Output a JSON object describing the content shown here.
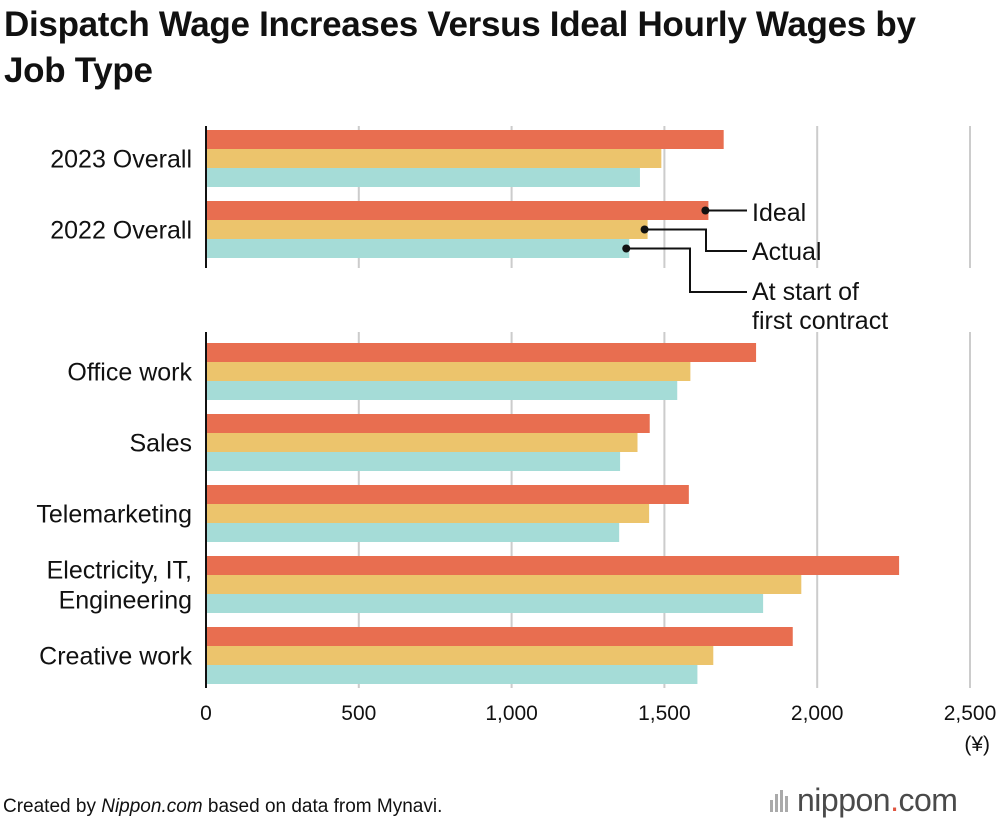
{
  "chart_data": {
    "type": "bar",
    "orientation": "horizontal",
    "title": "Dispatch Wage Increases Versus Ideal Hourly Wages by Job Type",
    "unit_label": "(¥)",
    "xlim": [
      0,
      2500
    ],
    "xticks": [
      {
        "value": 0,
        "label": "0"
      },
      {
        "value": 500,
        "label": "500"
      },
      {
        "value": 1000,
        "label": "1,000"
      },
      {
        "value": 1500,
        "label": "1,500"
      },
      {
        "value": 2000,
        "label": "2,000"
      },
      {
        "value": 2500,
        "label": "2,500"
      }
    ],
    "grid": true,
    "series": [
      {
        "name": "Ideal",
        "color": "#e86e50"
      },
      {
        "name": "Actual",
        "color": "#ecc46c"
      },
      {
        "name": "At start of first contract",
        "color": "#a5dcd7"
      }
    ],
    "groups": [
      {
        "name": "overall",
        "categories": [
          {
            "label": [
              "2023 Overall"
            ],
            "values": [
              1694,
              1490,
              1420
            ]
          },
          {
            "label": [
              "2022 Overall"
            ],
            "values": [
              1644,
              1445,
              1385
            ]
          }
        ]
      },
      {
        "name": "job-type",
        "categories": [
          {
            "label": [
              "Office work"
            ],
            "values": [
              1800,
              1585,
              1542
            ]
          },
          {
            "label": [
              "Sales"
            ],
            "values": [
              1452,
              1412,
              1355
            ]
          },
          {
            "label": [
              "Telemarketing"
            ],
            "values": [
              1580,
              1450,
              1352
            ]
          },
          {
            "label": [
              "Electricity, IT,",
              "Engineering"
            ],
            "values": [
              2268,
              1948,
              1823
            ]
          },
          {
            "label": [
              "Creative work"
            ],
            "values": [
              1920,
              1660,
              1608
            ]
          }
        ]
      }
    ],
    "legend": {
      "placement": "annotated-right",
      "labels": [
        "Ideal",
        "Actual",
        "At start of",
        "first contract"
      ]
    }
  },
  "footer": {
    "prefix": "Created by ",
    "site": "Nippon.com",
    "suffix": " based on data from Mynavi."
  },
  "brand": {
    "name_main": "nippon",
    "name_dot": ".",
    "name_tld": "com",
    "accent_color": "#e0553f"
  }
}
